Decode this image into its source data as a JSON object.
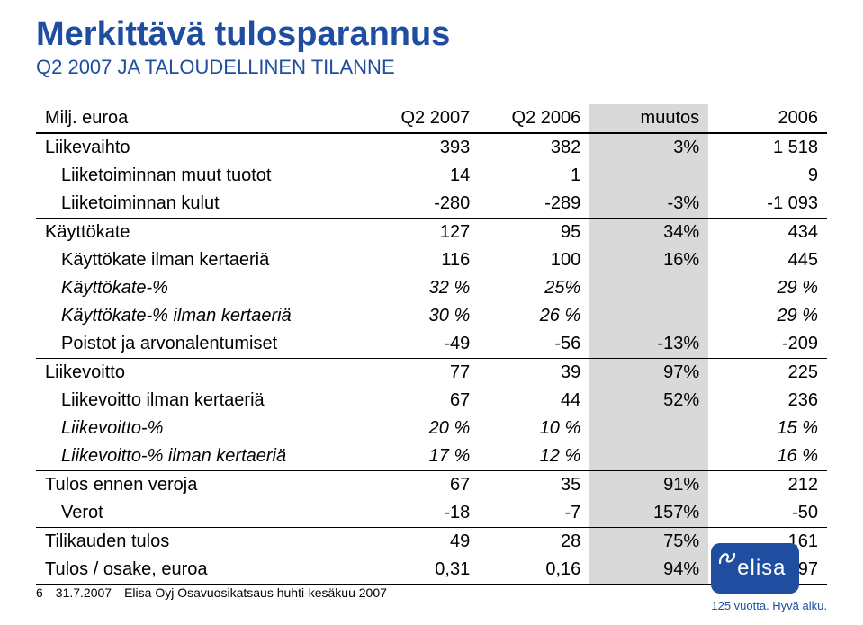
{
  "title": "Merkittävä tulosparannus",
  "subtitle": "Q2 2007 JA TALOUDELLINEN TILANNE",
  "table": {
    "header": {
      "label": "Milj. euroa",
      "col1": "Q2 2007",
      "col2": "Q2 2006",
      "col3": "muutos",
      "col4": "2006"
    },
    "rows": [
      {
        "label": "Liikevaihto",
        "c1": "393",
        "c2": "382",
        "c3": "3%",
        "c4": "1 518",
        "topline": false,
        "indent": false,
        "italic": false
      },
      {
        "label": "Liiketoiminnan muut tuotot",
        "c1": "14",
        "c2": "1",
        "c3": "",
        "c4": "9",
        "indent": true,
        "italic": false
      },
      {
        "label": "Liiketoiminnan kulut",
        "c1": "-280",
        "c2": "-289",
        "c3": "-3%",
        "c4": "-1 093",
        "indent": true,
        "italic": false
      },
      {
        "label": "Käyttökate",
        "c1": "127",
        "c2": "95",
        "c3": "34%",
        "c4": "434",
        "topline": true,
        "indent": false,
        "italic": false
      },
      {
        "label": "Käyttökate ilman kertaeriä",
        "c1": "116",
        "c2": "100",
        "c3": "16%",
        "c4": "445",
        "indent": true,
        "italic": false
      },
      {
        "label": "Käyttökate-%",
        "c1": "32 %",
        "c2": "25%",
        "c3": "",
        "c4": "29 %",
        "indent": true,
        "italic": true
      },
      {
        "label": "Käyttökate-% ilman kertaeriä",
        "c1": "30 %",
        "c2": "26 %",
        "c3": "",
        "c4": "29 %",
        "indent": true,
        "italic": true
      },
      {
        "label": "Poistot ja arvonalentumiset",
        "c1": "-49",
        "c2": "-56",
        "c3": "-13%",
        "c4": "-209",
        "indent": true,
        "italic": false
      },
      {
        "label": "Liikevoitto",
        "c1": "77",
        "c2": "39",
        "c3": "97%",
        "c4": "225",
        "topline": true,
        "indent": false,
        "italic": false
      },
      {
        "label": "Liikevoitto ilman kertaeriä",
        "c1": "67",
        "c2": "44",
        "c3": "52%",
        "c4": "236",
        "indent": true,
        "italic": false
      },
      {
        "label": "Liikevoitto-%",
        "c1": "20 %",
        "c2": "10 %",
        "c3": "",
        "c4": "15 %",
        "indent": true,
        "italic": true
      },
      {
        "label": "Liikevoitto-% ilman kertaeriä",
        "c1": "17 %",
        "c2": "12 %",
        "c3": "",
        "c4": "16 %",
        "indent": true,
        "italic": true
      },
      {
        "label": "Tulos ennen veroja",
        "c1": "67",
        "c2": "35",
        "c3": "91%",
        "c4": "212",
        "topline": true,
        "indent": false,
        "italic": false
      },
      {
        "label": "Verot",
        "c1": "-18",
        "c2": "-7",
        "c3": "157%",
        "c4": "-50",
        "indent": true,
        "italic": false
      },
      {
        "label": "Tilikauden tulos",
        "c1": "49",
        "c2": "28",
        "c3": "75%",
        "c4": "161",
        "topline": true,
        "indent": false,
        "italic": false
      },
      {
        "label": "Tulos / osake, euroa",
        "c1": "0,31",
        "c2": "0,16",
        "c3": "94%",
        "c4": "0,97",
        "indent": false,
        "italic": false,
        "botline": true
      }
    ],
    "shaded_col_index": 3
  },
  "footer": {
    "page": "6",
    "date": "31.7.2007",
    "source": "Elisa Oyj   Osavuosikatsaus huhti-kesäkuu 2007"
  },
  "logo": {
    "brand": "elisa",
    "tagline": "125 vuotta. Hyvä alku.",
    "bg_color": "#1f4ea1",
    "text_color": "#ffffff"
  }
}
